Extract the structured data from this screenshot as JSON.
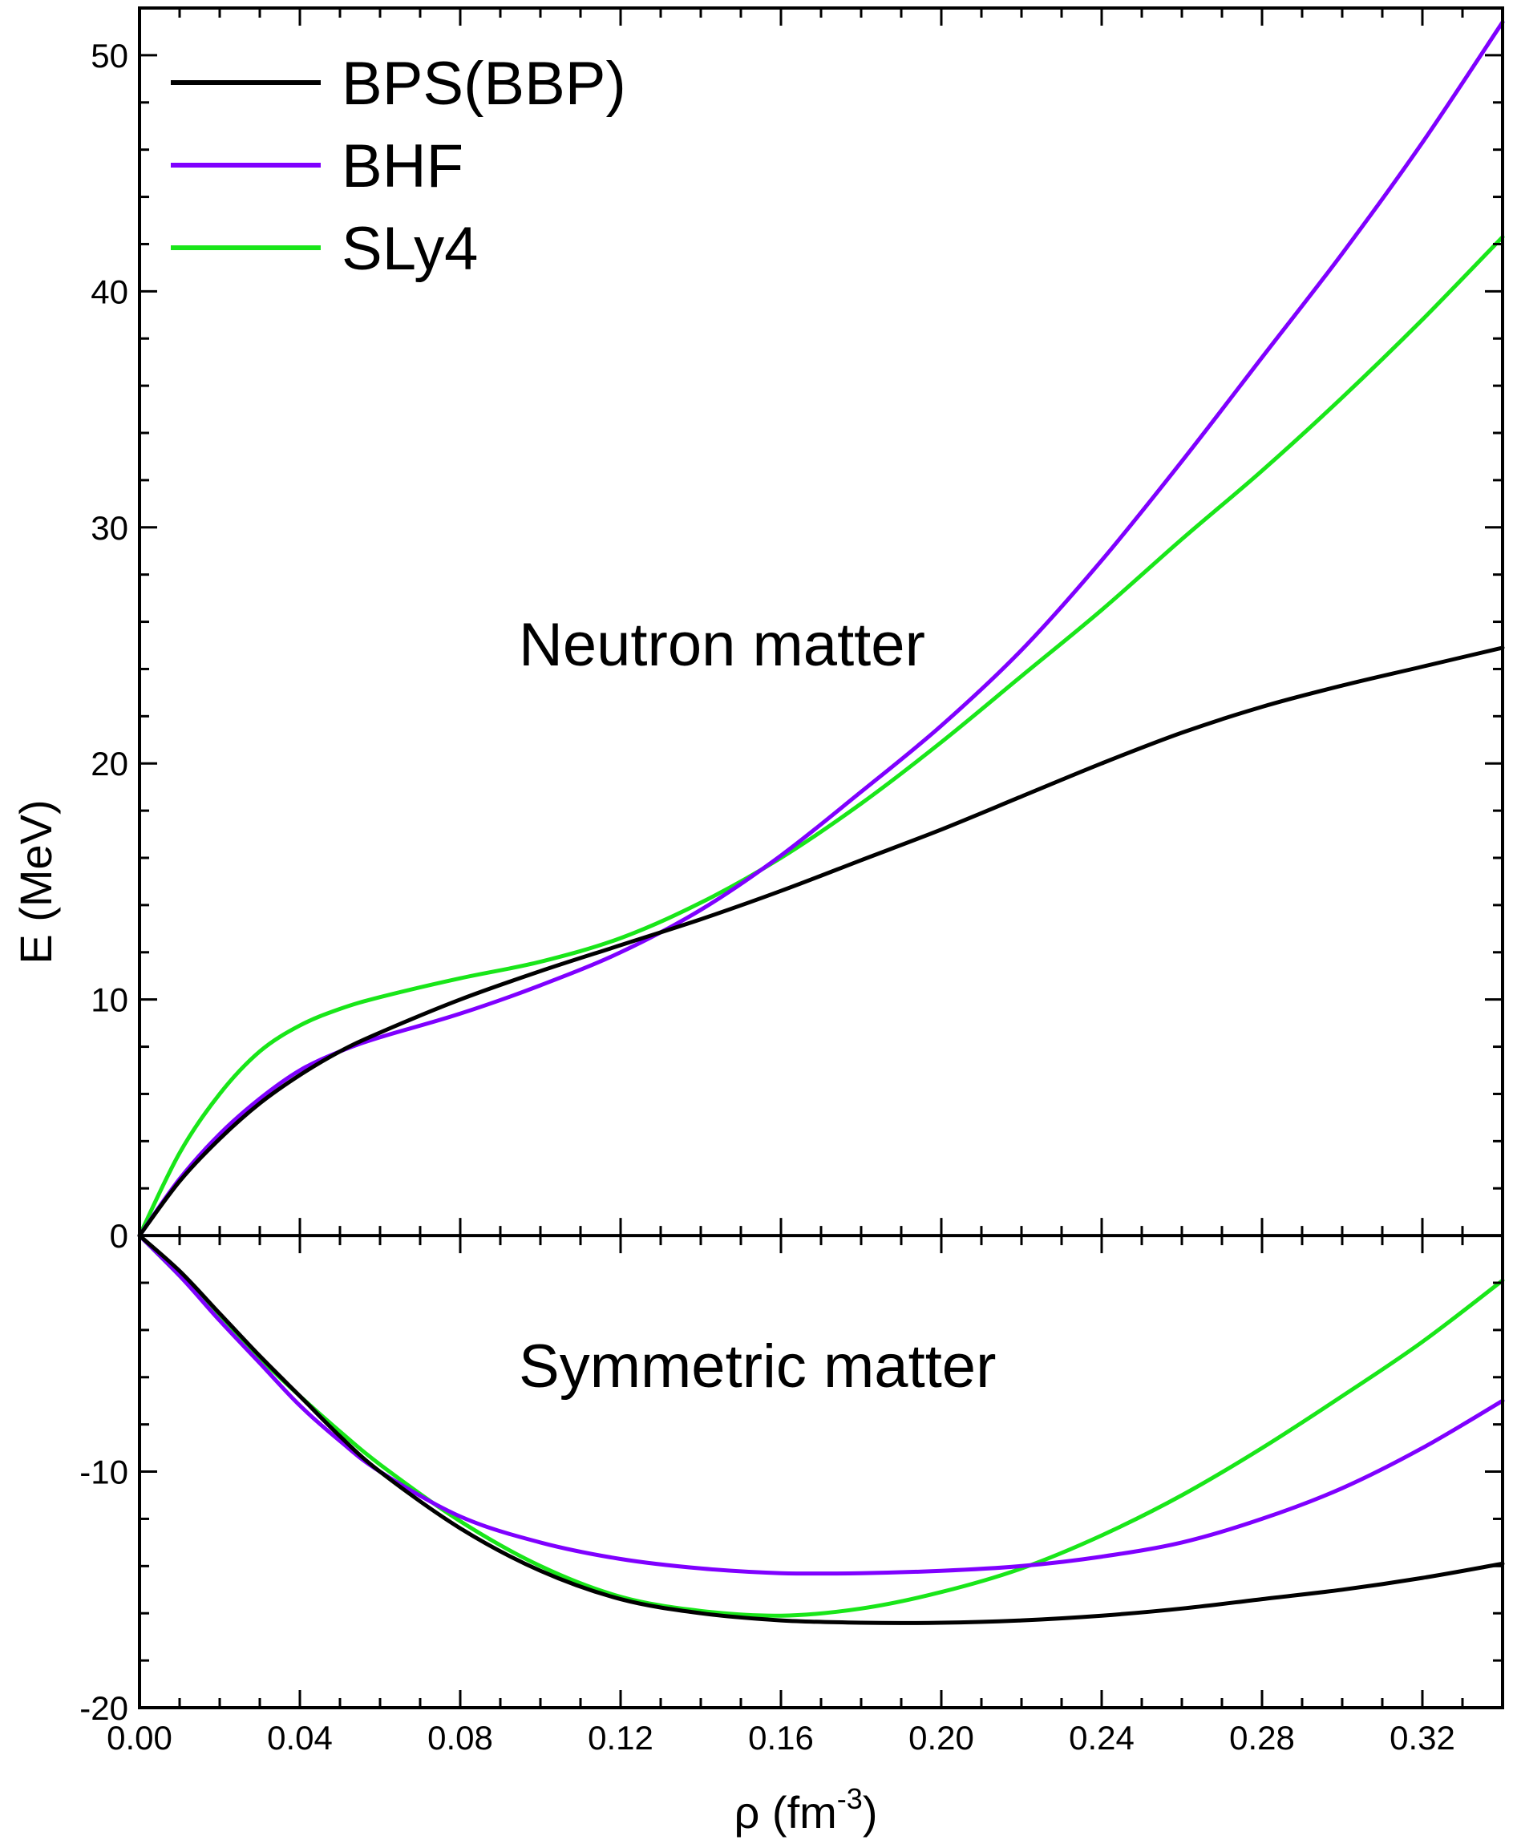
{
  "chart_data": {
    "type": "line",
    "xlabel": "ρ (fm",
    "xlabel_sup": "-3",
    "xlabel_close": ")",
    "ylabel": "E (MeV)",
    "xlim": [
      0.0,
      0.34
    ],
    "ylim": [
      -20,
      52
    ],
    "x_ticks": [
      "0.00",
      "0.04",
      "0.08",
      "0.12",
      "0.16",
      "0.20",
      "0.24",
      "0.28",
      "0.32"
    ],
    "y_ticks": [
      "-20",
      "-10",
      "0",
      "10",
      "20",
      "30",
      "40",
      "50"
    ],
    "legend_position": "top-left",
    "annotations": [
      "Neutron matter",
      "Symmetric matter"
    ],
    "series": [
      {
        "name": "BPS(BBP)",
        "color": "#000000",
        "neutron": {
          "x": [
            0,
            0.01,
            0.02,
            0.03,
            0.04,
            0.05,
            0.06,
            0.08,
            0.1,
            0.12,
            0.14,
            0.16,
            0.18,
            0.2,
            0.22,
            0.24,
            0.26,
            0.28,
            0.3,
            0.32,
            0.34
          ],
          "y": [
            0,
            2.3,
            4.1,
            5.6,
            6.8,
            7.8,
            8.6,
            10.0,
            11.2,
            12.3,
            13.4,
            14.6,
            15.9,
            17.2,
            18.6,
            20.0,
            21.3,
            22.4,
            23.3,
            24.1,
            24.9
          ]
        },
        "symmetric": {
          "x": [
            0,
            0.01,
            0.02,
            0.03,
            0.04,
            0.05,
            0.06,
            0.08,
            0.1,
            0.12,
            0.14,
            0.16,
            0.18,
            0.2,
            0.22,
            0.24,
            0.26,
            0.28,
            0.3,
            0.32,
            0.34
          ],
          "y": [
            0,
            -1.5,
            -3.3,
            -5.1,
            -6.8,
            -8.5,
            -10.0,
            -12.4,
            -14.2,
            -15.4,
            -16.0,
            -16.3,
            -16.4,
            -16.4,
            -16.3,
            -16.1,
            -15.8,
            -15.4,
            -15.0,
            -14.5,
            -13.9
          ]
        }
      },
      {
        "name": "BHF",
        "color": "#7f00ff",
        "neutron": {
          "x": [
            0,
            0.01,
            0.02,
            0.03,
            0.04,
            0.05,
            0.06,
            0.08,
            0.1,
            0.12,
            0.14,
            0.16,
            0.18,
            0.2,
            0.22,
            0.24,
            0.26,
            0.28,
            0.3,
            0.32,
            0.34
          ],
          "y": [
            0,
            2.4,
            4.3,
            5.8,
            7.0,
            7.8,
            8.4,
            9.4,
            10.6,
            12.0,
            13.8,
            16.1,
            18.8,
            21.6,
            24.8,
            28.6,
            32.8,
            37.2,
            41.6,
            46.3,
            51.4
          ]
        },
        "symmetric": {
          "x": [
            0,
            0.01,
            0.02,
            0.03,
            0.04,
            0.05,
            0.06,
            0.08,
            0.1,
            0.12,
            0.14,
            0.16,
            0.18,
            0.2,
            0.22,
            0.24,
            0.26,
            0.28,
            0.3,
            0.32,
            0.34
          ],
          "y": [
            0,
            -1.7,
            -3.6,
            -5.4,
            -7.2,
            -8.7,
            -10.0,
            -11.9,
            -13.0,
            -13.7,
            -14.1,
            -14.3,
            -14.3,
            -14.2,
            -14.0,
            -13.6,
            -13.0,
            -12.0,
            -10.7,
            -9.0,
            -7.0
          ]
        }
      },
      {
        "name": "SLy4",
        "color": "#19e619",
        "neutron": {
          "x": [
            0,
            0.01,
            0.02,
            0.03,
            0.04,
            0.05,
            0.06,
            0.08,
            0.1,
            0.12,
            0.14,
            0.16,
            0.18,
            0.2,
            0.22,
            0.24,
            0.26,
            0.28,
            0.3,
            0.32,
            0.34
          ],
          "y": [
            0,
            3.5,
            6.0,
            7.8,
            8.9,
            9.6,
            10.1,
            10.9,
            11.6,
            12.6,
            14.1,
            16.0,
            18.3,
            20.9,
            23.7,
            26.5,
            29.5,
            32.4,
            35.5,
            38.8,
            42.3
          ]
        },
        "symmetric": {
          "x": [
            0,
            0.01,
            0.02,
            0.03,
            0.04,
            0.05,
            0.06,
            0.08,
            0.1,
            0.12,
            0.14,
            0.16,
            0.18,
            0.2,
            0.22,
            0.24,
            0.26,
            0.28,
            0.3,
            0.32,
            0.34
          ],
          "y": [
            0,
            -1.7,
            -3.5,
            -5.2,
            -6.8,
            -8.3,
            -9.7,
            -12.1,
            -14.0,
            -15.3,
            -15.9,
            -16.1,
            -15.8,
            -15.1,
            -14.1,
            -12.7,
            -11.0,
            -9.0,
            -6.8,
            -4.5,
            -1.9
          ]
        }
      }
    ]
  }
}
